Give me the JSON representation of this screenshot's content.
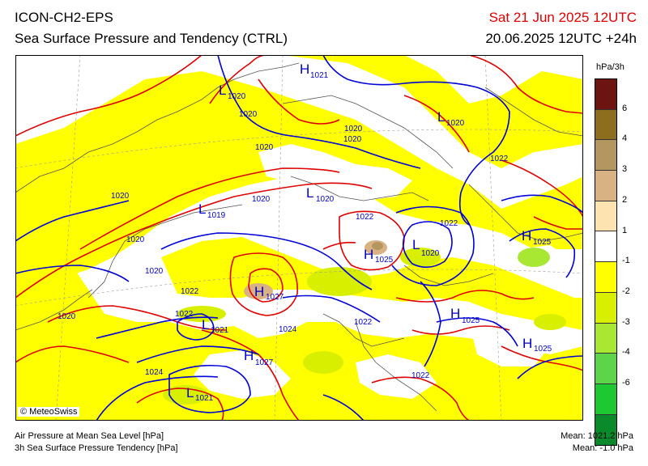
{
  "header": {
    "model": "ICON-CH2-EPS",
    "product": "Sea Surface Pressure and Tendency (CTRL)",
    "valid_time": "Sat 21 Jun 2025 12UTC",
    "run_time": "20.06.2025 12UTC +24h"
  },
  "copyright": "© MeteoSwiss",
  "footer": {
    "field1": "Air Pressure at Mean Sea Level [hPa]",
    "field2": "3h Sea Surface Pressure Tendency [hPa]",
    "mean1": "Mean: 1021.2 hPa",
    "mean2": "Mean:  -1.0 hPa"
  },
  "legend": {
    "unit": "hPa/3h",
    "colors": [
      "#6b1410",
      "#8c6e1e",
      "#b39660",
      "#d8b283",
      "#fde3b0",
      "#ffffff",
      "#ffff00",
      "#d8f000",
      "#a8e832",
      "#5ed44a",
      "#1ec832",
      "#0a8a2a"
    ],
    "labels": [
      "6",
      "4",
      "3",
      "2",
      "1",
      "-1",
      "-2",
      "-3",
      "-4",
      "-6"
    ]
  },
  "map": {
    "pressure_systems": [
      {
        "type": "H",
        "value": "1021"
      },
      {
        "type": "L",
        "value": "1020"
      },
      {
        "type": "L",
        "value": "1020"
      },
      {
        "type": "L",
        "value": "1020"
      },
      {
        "type": "L",
        "value": "1019"
      },
      {
        "type": "H",
        "value": "1025"
      },
      {
        "type": "L",
        "value": "1020"
      },
      {
        "type": "H",
        "value": "1025"
      },
      {
        "type": "H",
        "value": "1027"
      },
      {
        "type": "L",
        "value": "1021"
      },
      {
        "type": "H",
        "value": "1025"
      },
      {
        "type": "H",
        "value": "1025"
      },
      {
        "type": "H",
        "value": "1027"
      },
      {
        "type": "L",
        "value": "1021"
      }
    ],
    "isobar_labels": [
      "1020",
      "1020",
      "1020",
      "1020",
      "1020",
      "1020",
      "1020",
      "1020",
      "1020",
      "1022",
      "1022",
      "1022",
      "1022",
      "1022",
      "1022",
      "1024",
      "1024",
      "1022"
    ]
  }
}
